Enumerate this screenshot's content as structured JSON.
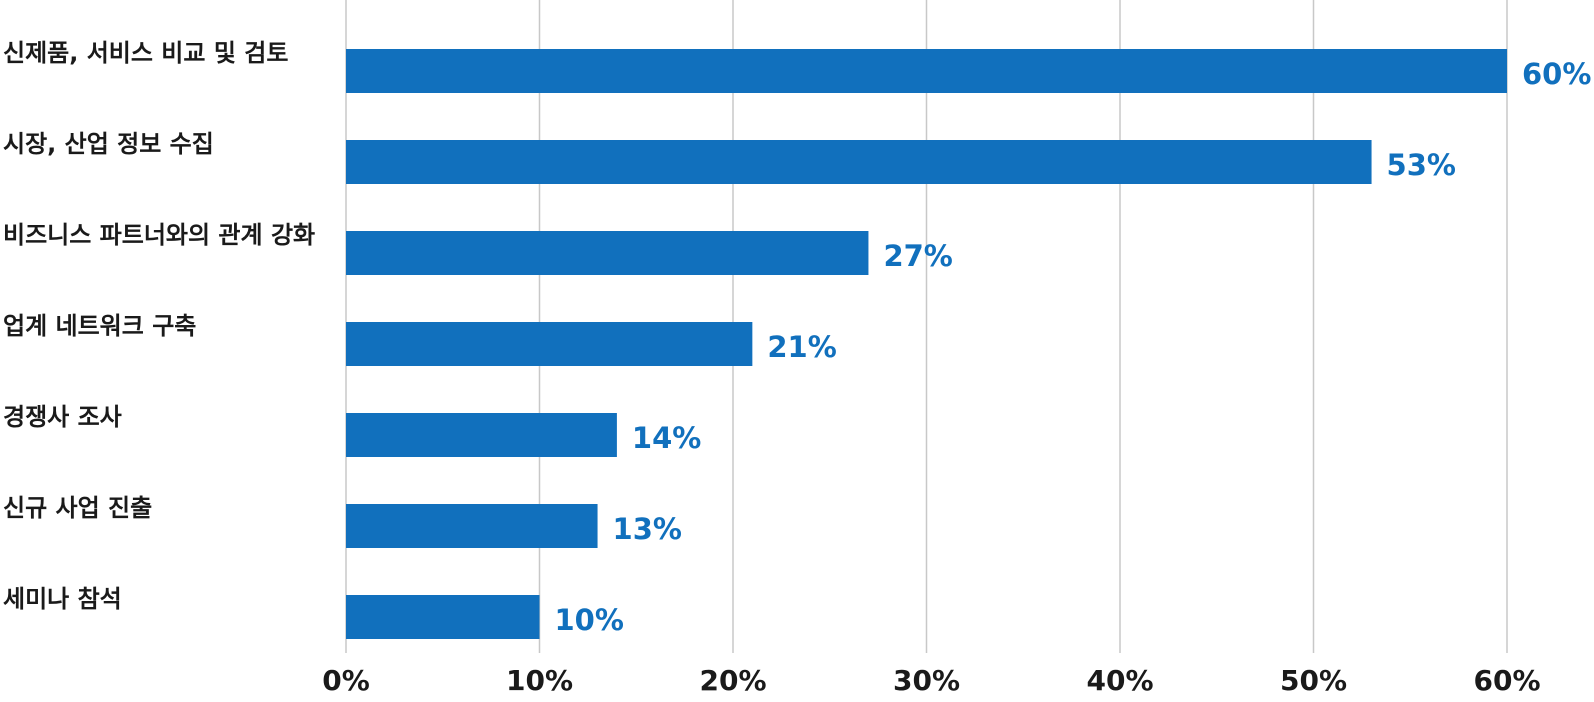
{
  "chart_data": {
    "type": "bar",
    "orientation": "horizontal",
    "title": "",
    "xlabel": "",
    "ylabel": "",
    "categories": [
      "신제품, 서비스 비교 및 검토",
      "시장, 산업 정보 수집",
      "비즈니스 파트너와의 관계 강화",
      "업계 네트워크 구축",
      "경쟁사 조사",
      "신규 사업 진출",
      "세미나 참석"
    ],
    "values": [
      60,
      53,
      27,
      21,
      14,
      13,
      10
    ],
    "value_labels": [
      "60%",
      "53%",
      "27%",
      "21%",
      "14%",
      "13%",
      "10%"
    ],
    "xlim": [
      0,
      60
    ],
    "x_ticks": [
      0,
      10,
      20,
      30,
      40,
      50,
      60
    ],
    "x_tick_labels": [
      "0%",
      "10%",
      "20%",
      "30%",
      "40%",
      "50%",
      "60%"
    ],
    "grid": "vertical",
    "legend": "none",
    "colors": {
      "bar": "#1170bd",
      "value_label": "#1170bd",
      "grid": "#c8c8c8",
      "text": "#1a1a1a"
    }
  }
}
